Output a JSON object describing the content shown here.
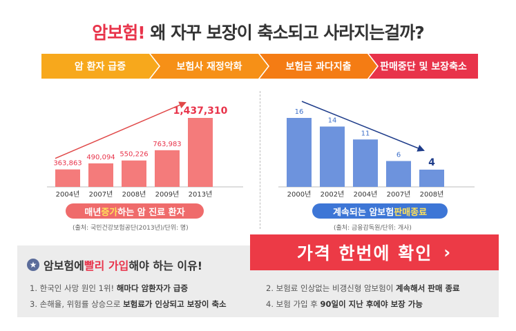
{
  "header": {
    "title_highlight": "암보험!",
    "title_rest": "왜 자꾸 보장이 축소되고 사라지는걸까?"
  },
  "flow": {
    "steps": [
      {
        "label": "암 환자 급증",
        "color": "#f7a81c"
      },
      {
        "label": "보험사 재정악화",
        "color": "#f69017"
      },
      {
        "label": "보험금 과다지출",
        "color": "#f47c14"
      },
      {
        "label": "판매중단 및 보장축소",
        "color": "#e8334a"
      }
    ]
  },
  "colors": {
    "left_bar": "#f47b7b",
    "right_bar": "#6d93dd",
    "left_label": "#e8334a",
    "right_label": "#3d6fc9",
    "arrow_left": "#e04848",
    "arrow_right": "#1e3c8a"
  },
  "chart_data": [
    {
      "type": "bar",
      "title": "매년 증가하는 암 진료 환자",
      "categories": [
        "2004년",
        "2007년",
        "2008년",
        "2009년",
        "2013년"
      ],
      "values": [
        363863,
        490094,
        550226,
        763983,
        1437310
      ],
      "value_labels": [
        "363,863",
        "490,094",
        "550,226",
        "763,983",
        "1,437,310"
      ],
      "annotations": [
        "increasing trend arrow"
      ],
      "caption_prefix": "매년 ",
      "caption_highlight": "증가",
      "caption_suffix": "하는 암 진료 환자",
      "source": "(출처: 국민건강보험공단(2013년)/단위: 명)"
    },
    {
      "type": "bar",
      "title": "계속되는 암보험 판매종료",
      "categories": [
        "2000년",
        "2002년",
        "2004년",
        "2007년",
        "2008년"
      ],
      "values": [
        16,
        14,
        11,
        6,
        4
      ],
      "value_labels": [
        "16",
        "14",
        "11",
        "6",
        "4"
      ],
      "annotations": [
        "decreasing trend arrow"
      ],
      "caption_prefix": "계속되는 암보험 ",
      "caption_highlight": "판매종료",
      "source": "(출처: 금융감독원/단위: 개사)"
    }
  ],
  "panel": {
    "title_prefix": "암보험에 ",
    "title_red": "빨리 가입",
    "title_suffix": "해야 하는 이유!",
    "reasons": [
      {
        "plain": "1. 한국인 사망 원인 1위! ",
        "em": "해마다 암환자가 급증",
        "tail": ""
      },
      {
        "plain": "3. 손해율, 위험률 상승으로 ",
        "em": "보험료가 인상되고 보장이 축소",
        "tail": ""
      },
      {
        "plain": "2. 보험료 인상없는 비갱신형 암보험이 ",
        "em": "계속해서 판매 종료",
        "tail": ""
      },
      {
        "plain": "4. 보험 가입 후 ",
        "em": "90일이 지난 후에야 보장 가능",
        "tail": ""
      }
    ]
  },
  "cta": {
    "label": "가격 한번에 확인",
    "chevron": "›"
  }
}
